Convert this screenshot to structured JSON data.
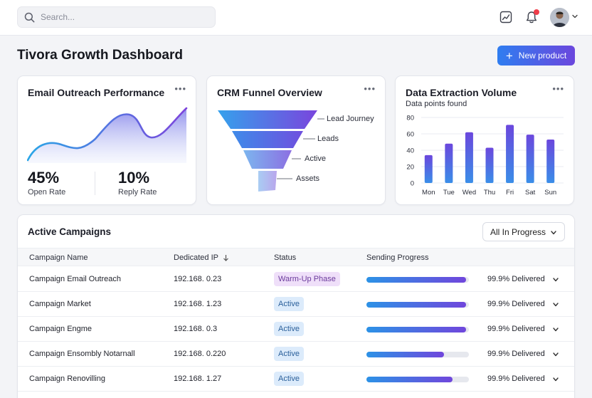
{
  "search": {
    "placeholder": "Search..."
  },
  "header": {
    "icons": [
      "chart-icon",
      "bell-icon"
    ],
    "notification_dot_color": "#ef3d4a"
  },
  "page": {
    "title": "Tivora Growth Dashboard",
    "new_product_label": "New product"
  },
  "email_card": {
    "title": "Email Outreach Performance",
    "open_rate_value": "45%",
    "open_rate_label": "Open Rate",
    "reply_rate_value": "10%",
    "reply_rate_label": "Reply Rate"
  },
  "funnel_card": {
    "title": "CRM Funnel Overview",
    "stages": [
      "Lead Journey",
      "Leads",
      "Active",
      "Assets"
    ]
  },
  "chart_card": {
    "title": "Data Extraction Volume",
    "subtitle": "Data points found"
  },
  "chart_data": {
    "type": "bar",
    "categories": [
      "Mon",
      "Tue",
      "Wed",
      "Thu",
      "Fri",
      "Sat",
      "Sun"
    ],
    "values": [
      34,
      48,
      62,
      43,
      71,
      59,
      53
    ],
    "title": "Data Extraction Volume",
    "subtitle": "Data points found",
    "ylim": [
      0,
      80
    ],
    "yticks": [
      0,
      20,
      40,
      60,
      80
    ],
    "grid": true,
    "colors": [
      "#3a8ee8",
      "#6b47dd"
    ]
  },
  "campaigns": {
    "title": "Active Campaigns",
    "filter_label": "All In Progress",
    "columns": [
      "Campaign Name",
      "Dedicated IP",
      "Status",
      "Sending Progress"
    ],
    "rows": [
      {
        "name": "Campaign Email Outreach",
        "ip": "192.168. 0.23",
        "status": "Warm-Up Phase",
        "status_type": "warm",
        "progress": 0.97,
        "delivered": "99.9% Delivered"
      },
      {
        "name": "Campaign Market",
        "ip": "192.168. 1.23",
        "status": "Active",
        "status_type": "active",
        "progress": 0.97,
        "delivered": "99.9% Delivered"
      },
      {
        "name": "Campaign Engme",
        "ip": "192.168. 0.3",
        "status": "Active",
        "status_type": "active",
        "progress": 0.97,
        "delivered": "99.9% Delivered"
      },
      {
        "name": "Campaign Ensombly Notarnall",
        "ip": "192.168. 0.220",
        "status": "Active",
        "status_type": "active",
        "progress": 0.76,
        "delivered": "99.9% Delivered"
      },
      {
        "name": "Campaign Renovilling",
        "ip": "192.168. 1.27",
        "status": "Active",
        "status_type": "active",
        "progress": 0.84,
        "delivered": "99.9% Delivered"
      }
    ]
  }
}
